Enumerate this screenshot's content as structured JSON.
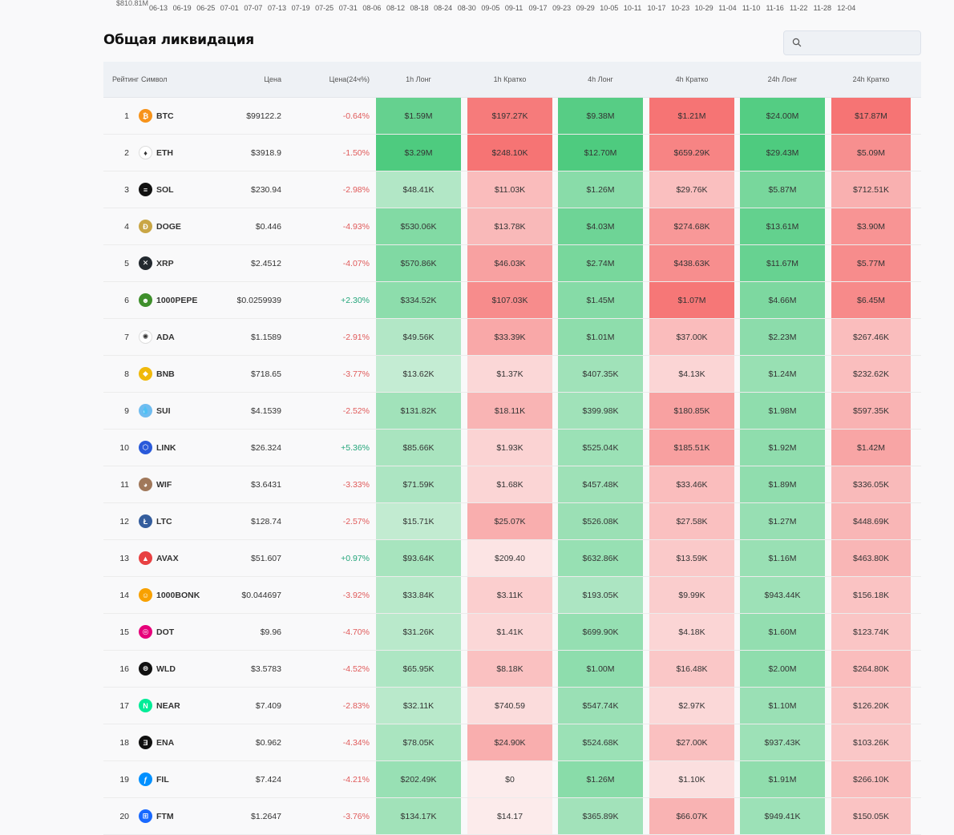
{
  "chart_data": {
    "type": "line",
    "title": "",
    "xlabel": "",
    "ylabel": "",
    "x": [
      "06-13",
      "06-19",
      "06-25",
      "07-01",
      "07-07",
      "07-13",
      "07-19",
      "07-25",
      "07-31",
      "08-06",
      "08-12",
      "08-18",
      "08-24",
      "08-30",
      "09-05",
      "09-11",
      "09-17",
      "09-23",
      "09-29",
      "10-05",
      "10-11",
      "10-17",
      "10-23",
      "10-29",
      "11-04",
      "11-10",
      "11-16",
      "11-22",
      "11-28",
      "12-04"
    ],
    "y_tick_fragment": "$810.81M"
  },
  "section_title": "Общая ликвидация",
  "search": {
    "placeholder": "",
    "value": ""
  },
  "colors": {
    "header_bg": "#eef1f5",
    "negative_text": "#e05a5a",
    "positive_text": "#23a57a"
  },
  "columns": {
    "rank": "Рейтинг",
    "symbol": "Символ",
    "price": "Цена",
    "change": "Цена(24ч%)",
    "long_1h": "1h Лонг",
    "short_1h": "1h Кратко",
    "long_4h": "4h Лонг",
    "short_4h": "4h Кратко",
    "long_24h": "24h Лонг",
    "short_24h": "24h Кратко"
  },
  "rows": [
    {
      "rank": "1",
      "symbol": "BTC",
      "icon": "bitcoin-icon",
      "icon_color": "#f7931a",
      "icon_glyph": "₿",
      "price": "$99122.2",
      "change": "-0.64%",
      "l1": "$1.59M",
      "s1": "$197.27K",
      "l4": "$9.38M",
      "s4": "$1.21M",
      "l24": "$24.00M",
      "s24": "$17.87M"
    },
    {
      "rank": "2",
      "symbol": "ETH",
      "icon": "ethereum-icon",
      "icon_color": "#ffffff",
      "icon_glyph": "♦",
      "price": "$3918.9",
      "change": "-1.50%",
      "l1": "$3.29M",
      "s1": "$248.10K",
      "l4": "$12.70M",
      "s4": "$659.29K",
      "l24": "$29.43M",
      "s24": "$5.09M"
    },
    {
      "rank": "3",
      "symbol": "SOL",
      "icon": "solana-icon",
      "icon_color": "#111111",
      "icon_glyph": "≡",
      "price": "$230.94",
      "change": "-2.98%",
      "l1": "$48.41K",
      "s1": "$11.03K",
      "l4": "$1.26M",
      "s4": "$29.76K",
      "l24": "$5.87M",
      "s24": "$712.51K"
    },
    {
      "rank": "4",
      "symbol": "DOGE",
      "icon": "dogecoin-icon",
      "icon_color": "#c9a645",
      "icon_glyph": "Ð",
      "price": "$0.446",
      "change": "-4.93%",
      "l1": "$530.06K",
      "s1": "$13.78K",
      "l4": "$4.03M",
      "s4": "$274.68K",
      "l24": "$13.61M",
      "s24": "$3.90M"
    },
    {
      "rank": "5",
      "symbol": "XRP",
      "icon": "xrp-icon",
      "icon_color": "#23292f",
      "icon_glyph": "✕",
      "price": "$2.4512",
      "change": "-4.07%",
      "l1": "$570.86K",
      "s1": "$46.03K",
      "l4": "$2.74M",
      "s4": "$438.63K",
      "l24": "$11.67M",
      "s24": "$5.77M"
    },
    {
      "rank": "6",
      "symbol": "1000PEPE",
      "icon": "pepe-icon",
      "icon_color": "#3f8f2c",
      "icon_glyph": "☻",
      "price": "$0.0259939",
      "change": "+2.30%",
      "l1": "$334.52K",
      "s1": "$107.03K",
      "l4": "$1.45M",
      "s4": "$1.07M",
      "l24": "$4.66M",
      "s24": "$6.45M"
    },
    {
      "rank": "7",
      "symbol": "ADA",
      "icon": "cardano-icon",
      "icon_color": "#ffffff",
      "icon_glyph": "✺",
      "price": "$1.1589",
      "change": "-2.91%",
      "l1": "$49.56K",
      "s1": "$33.39K",
      "l4": "$1.01M",
      "s4": "$37.00K",
      "l24": "$2.23M",
      "s24": "$267.46K"
    },
    {
      "rank": "8",
      "symbol": "BNB",
      "icon": "bnb-icon",
      "icon_color": "#f0b90b",
      "icon_glyph": "◆",
      "price": "$718.65",
      "change": "-3.77%",
      "l1": "$13.62K",
      "s1": "$1.37K",
      "l4": "$407.35K",
      "s4": "$4.13K",
      "l24": "$1.24M",
      "s24": "$232.62K"
    },
    {
      "rank": "9",
      "symbol": "SUI",
      "icon": "sui-icon",
      "icon_color": "#6fbcf0",
      "icon_glyph": "💧",
      "price": "$4.1539",
      "change": "-2.52%",
      "l1": "$131.82K",
      "s1": "$18.11K",
      "l4": "$399.98K",
      "s4": "$180.85K",
      "l24": "$1.98M",
      "s24": "$597.35K"
    },
    {
      "rank": "10",
      "symbol": "LINK",
      "icon": "chainlink-icon",
      "icon_color": "#2a5ada",
      "icon_glyph": "⬡",
      "price": "$26.324",
      "change": "+5.36%",
      "l1": "$85.66K",
      "s1": "$1.93K",
      "l4": "$525.04K",
      "s4": "$185.51K",
      "l24": "$1.92M",
      "s24": "$1.42M"
    },
    {
      "rank": "11",
      "symbol": "WIF",
      "icon": "dogwifhat-icon",
      "icon_color": "#a0785a",
      "icon_glyph": "◕",
      "price": "$3.6431",
      "change": "-3.33%",
      "l1": "$71.59K",
      "s1": "$1.68K",
      "l4": "$457.48K",
      "s4": "$33.46K",
      "l24": "$1.89M",
      "s24": "$336.05K"
    },
    {
      "rank": "12",
      "symbol": "LTC",
      "icon": "litecoin-icon",
      "icon_color": "#345d9d",
      "icon_glyph": "Ł",
      "price": "$128.74",
      "change": "-2.57%",
      "l1": "$15.71K",
      "s1": "$25.07K",
      "l4": "$526.08K",
      "s4": "$27.58K",
      "l24": "$1.27M",
      "s24": "$448.69K"
    },
    {
      "rank": "13",
      "symbol": "AVAX",
      "icon": "avalanche-icon",
      "icon_color": "#e84142",
      "icon_glyph": "▲",
      "price": "$51.607",
      "change": "+0.97%",
      "l1": "$93.64K",
      "s1": "$209.40",
      "l4": "$632.86K",
      "s4": "$13.59K",
      "l24": "$1.16M",
      "s24": "$463.80K"
    },
    {
      "rank": "14",
      "symbol": "1000BONK",
      "icon": "bonk-icon",
      "icon_color": "#f8a100",
      "icon_glyph": "☺",
      "price": "$0.044697",
      "change": "-3.92%",
      "l1": "$33.84K",
      "s1": "$3.11K",
      "l4": "$193.05K",
      "s4": "$9.99K",
      "l24": "$943.44K",
      "s24": "$156.18K"
    },
    {
      "rank": "15",
      "symbol": "DOT",
      "icon": "polkadot-icon",
      "icon_color": "#e6007a",
      "icon_glyph": "◎",
      "price": "$9.96",
      "change": "-4.70%",
      "l1": "$31.26K",
      "s1": "$1.41K",
      "l4": "$699.90K",
      "s4": "$4.18K",
      "l24": "$1.60M",
      "s24": "$123.74K"
    },
    {
      "rank": "16",
      "symbol": "WLD",
      "icon": "worldcoin-icon",
      "icon_color": "#111111",
      "icon_glyph": "⊜",
      "price": "$3.5783",
      "change": "-4.52%",
      "l1": "$65.95K",
      "s1": "$8.18K",
      "l4": "$1.00M",
      "s4": "$16.48K",
      "l24": "$2.00M",
      "s24": "$264.80K"
    },
    {
      "rank": "17",
      "symbol": "NEAR",
      "icon": "near-icon",
      "icon_color": "#00ec97",
      "icon_glyph": "N",
      "price": "$7.409",
      "change": "-2.83%",
      "l1": "$32.11K",
      "s1": "$740.59",
      "l4": "$547.74K",
      "s4": "$2.97K",
      "l24": "$1.10M",
      "s24": "$126.20K"
    },
    {
      "rank": "18",
      "symbol": "ENA",
      "icon": "ethena-icon",
      "icon_color": "#111111",
      "icon_glyph": "Ǝ",
      "price": "$0.962",
      "change": "-4.34%",
      "l1": "$78.05K",
      "s1": "$24.90K",
      "l4": "$524.68K",
      "s4": "$27.00K",
      "l24": "$937.43K",
      "s24": "$103.26K"
    },
    {
      "rank": "19",
      "symbol": "FIL",
      "icon": "filecoin-icon",
      "icon_color": "#0090ff",
      "icon_glyph": "ƒ",
      "price": "$7.424",
      "change": "-4.21%",
      "l1": "$202.49K",
      "s1": "$0",
      "l4": "$1.26M",
      "s4": "$1.10K",
      "l24": "$1.91M",
      "s24": "$266.10K"
    },
    {
      "rank": "20",
      "symbol": "FTM",
      "icon": "fantom-icon",
      "icon_color": "#1969ff",
      "icon_glyph": "⊞",
      "price": "$1.2647",
      "change": "-3.76%",
      "l1": "$134.17K",
      "s1": "$14.17",
      "l4": "$365.89K",
      "s4": "$66.07K",
      "l24": "$949.41K",
      "s24": "$150.05K"
    }
  ]
}
